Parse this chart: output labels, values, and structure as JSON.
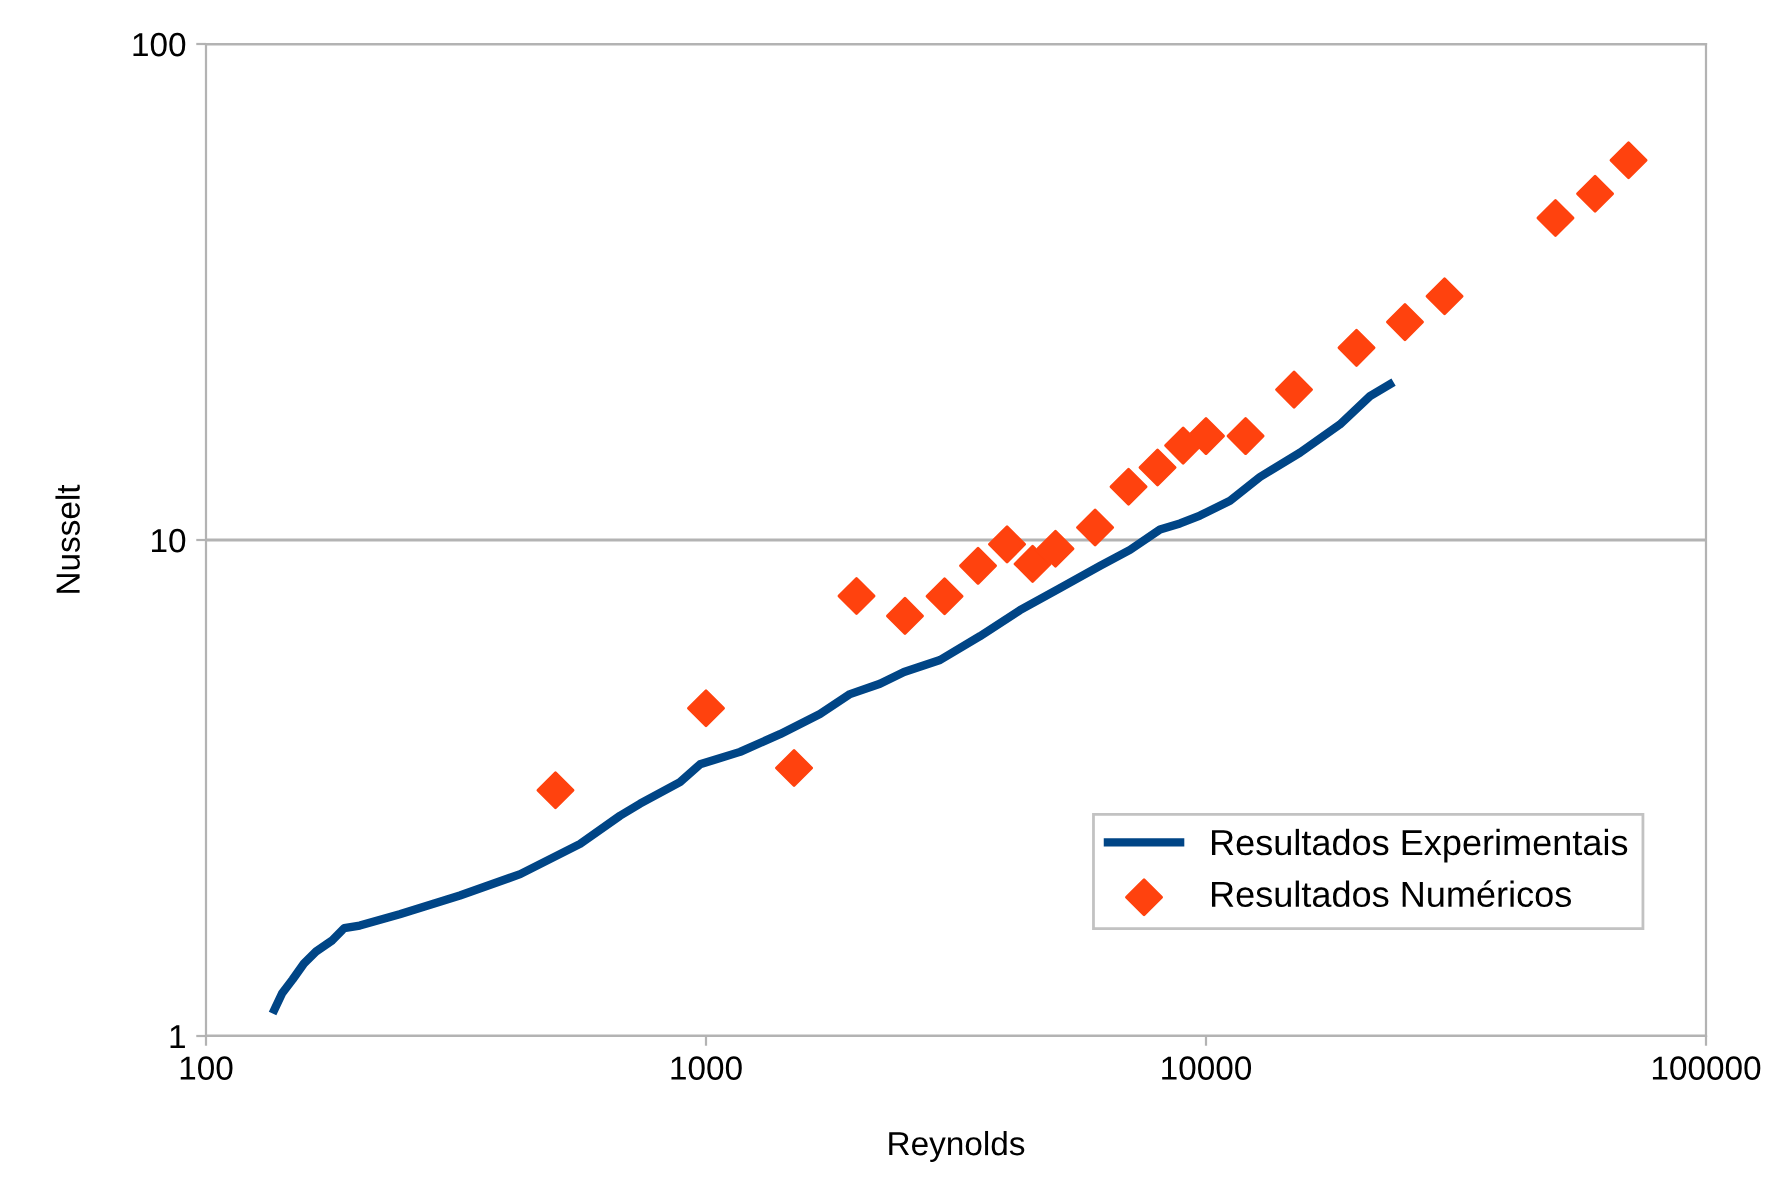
{
  "chart_data": {
    "type": "line",
    "xlabel": "Reynolds",
    "ylabel": "Nusselt",
    "log": "xy",
    "xlim": [
      100,
      100000
    ],
    "ylim": [
      1,
      100
    ],
    "xticks": [
      100,
      1000,
      10000,
      100000
    ],
    "yticks": [
      1,
      10,
      100
    ],
    "grid": "y",
    "legend": "bottom right",
    "series": [
      {
        "name": "Resultados Experimentais",
        "color": "#004586",
        "marker": "none",
        "line_style": "solid",
        "x": [
          137,
          142,
          149,
          157,
          166,
          179,
          189,
          203,
          244,
          322,
          425,
          560,
          673,
          738,
          887,
          973,
          1170,
          1406,
          1690,
          1941,
          2228,
          2489,
          2938,
          3532,
          4246,
          5105,
          6138,
          7047,
          8091,
          8872,
          9727,
          11170,
          12820,
          15420,
          18530,
          21280,
          23330
        ],
        "values": [
          1.13,
          1.22,
          1.3,
          1.4,
          1.48,
          1.56,
          1.65,
          1.67,
          1.76,
          1.92,
          2.12,
          2.44,
          2.78,
          2.94,
          3.25,
          3.53,
          3.74,
          4.06,
          4.46,
          4.89,
          5.13,
          5.42,
          5.73,
          6.4,
          7.22,
          8.0,
          8.87,
          9.55,
          10.5,
          10.8,
          11.2,
          12.0,
          13.4,
          15.0,
          17.1,
          19.5,
          20.6
        ]
      },
      {
        "name": "Resultados Numéricos",
        "type": "scatter",
        "color": "#ff420e",
        "marker": "diamond",
        "x": [
          500,
          1000,
          1500,
          2000,
          2500,
          3000,
          3500,
          4000,
          4500,
          5000,
          6000,
          7000,
          8000,
          9000,
          10000,
          12000,
          15000,
          20000,
          25000,
          30000,
          50000,
          60000,
          70000
        ],
        "values": [
          3.13,
          4.58,
          3.47,
          7.71,
          7.03,
          7.7,
          8.87,
          9.8,
          8.95,
          9.6,
          10.6,
          12.8,
          14.0,
          15.5,
          16.2,
          16.2,
          20.1,
          24.4,
          27.5,
          31.0,
          44.6,
          49.9,
          58.3
        ]
      }
    ]
  }
}
